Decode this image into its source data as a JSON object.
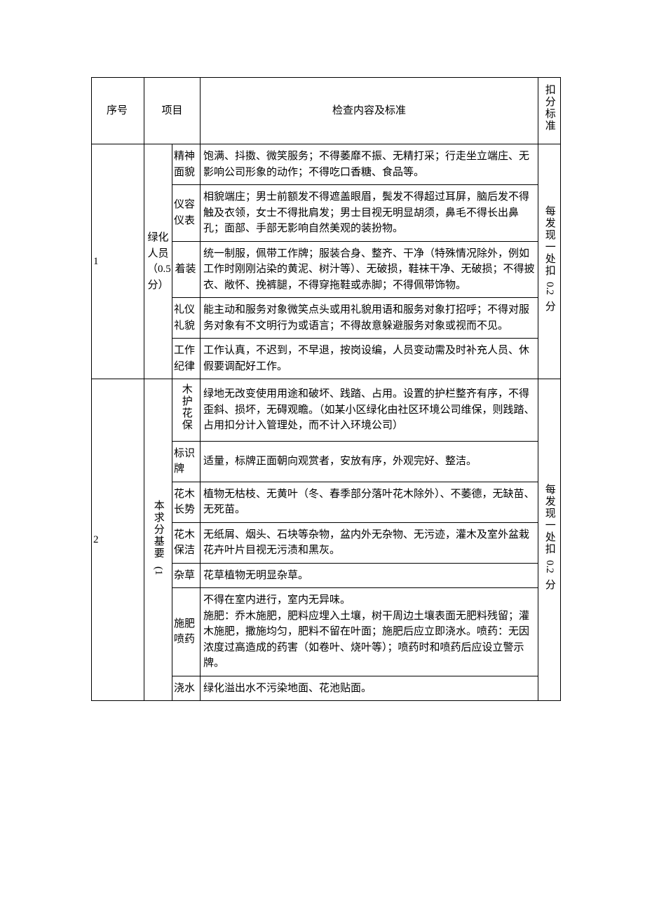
{
  "table": {
    "headers": {
      "seq": "序号",
      "project": "项目",
      "content": "检查内容及标准",
      "deduct": "扣分标准"
    },
    "sections": [
      {
        "seq": "1",
        "project": "绿化人员（0.5分）",
        "deduct_prefix": "每发现一处扣",
        "deduct_num": "0.2",
        "deduct_suffix": "分",
        "rows": [
          {
            "sub": "精神面貌",
            "content": "饱满、抖擞、微笑服务；不得萎靡不振、无精打采；行走坐立端庄、无影响公司形象的动作；不得吃口香糖、食品等。"
          },
          {
            "sub": "仪容仪表",
            "content": "相貌端庄；男士前额发不得遮盖眼眉，鬓发不得超过耳屏，脑后发不得触及衣领，女士不得批肩发；男士目视无明显胡须，鼻毛不得长出鼻孔；面部、手部无影响自然美观的装扮物。"
          },
          {
            "sub": "着装",
            "content": "统一制服，佩带工作牌；服装合身、整齐、干净（特殊情况除外，例如工作时刚刚沾染的黄泥、树汁等）、无破损，鞋袜干净、无破损；不得披衣、敞怀、挽裤腿，不得穿拖鞋或赤脚；不得佩带饰物。"
          },
          {
            "sub": "礼仪礼貌",
            "content": "能主动和服务对象微笑点头或用礼貌用语和服务对象打招呼；不得对服务对象有不文明行为或语言；不得故意躲避服务对象或视而不见。"
          },
          {
            "sub": "工作纪律",
            "content": "工作认真，不迟到，不早退，按岗设编，人员变动需及时补充人员、休假要调配好工作。"
          }
        ]
      },
      {
        "seq": "2",
        "project_prefix": "本求分基要",
        "project_num": "(1",
        "deduct_prefix": "每发现一处扣",
        "deduct_num": "0.2",
        "deduct_suffix": "分",
        "rows": [
          {
            "sub": "木护花保",
            "sub_vertical": true,
            "content": "绿地无改变使用用途和破坏、践踏、占用。设置的护栏整齐有序，不得歪斜、损坏，无碍观瞻。（如某小区绿化由社区环境公司维保，则践踏、占用扣分计入管理处，而不计入环境公司）"
          },
          {
            "sub": "标识牌",
            "content": "适量，标牌正面朝向观赏者，安放有序，外观完好、整洁。"
          },
          {
            "sub": "花木长势",
            "content": "植物无枯枝、无黄叶（冬、春季部分落叶花木除外）、不萎德，无缺苗、无死苗。"
          },
          {
            "sub": "花木保洁",
            "content": "无纸屑、烟头、石块等杂物，盆内外无杂物、无污迹，灌木及室外盆栽花卉叶片目视无污渍和黑灰。"
          },
          {
            "sub": "杂草",
            "content": "花草植物无明显杂草。"
          },
          {
            "sub": "施肥喷药",
            "content": "不得在室内进行，室内无异味。\n施肥：乔木施肥，肥料应埋入土壤，树干周边土壤表面无肥料残留；灌木施肥，撒施均匀，肥料不留在叶面；施肥后应立即浇水。喷药：无因浓度过高造成的药害（如卷叶、烧叶等）；喷药时和喷药后应设立警示牌。"
          },
          {
            "sub": "浇水",
            "content": "绿化溢出水不污染地面、花池贴面。"
          }
        ]
      }
    ]
  }
}
